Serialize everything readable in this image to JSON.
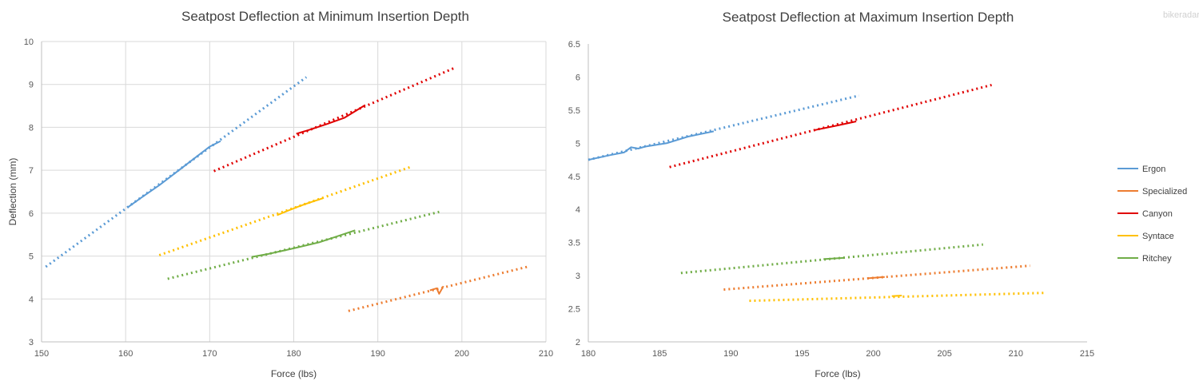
{
  "watermark": "bikeradar",
  "legend": {
    "position": "right",
    "entries": [
      {
        "name": "Ergon",
        "color": "#5b9bd5"
      },
      {
        "name": "Specialized",
        "color": "#ed7d31"
      },
      {
        "name": "Canyon",
        "color": "#e00000"
      },
      {
        "name": "Syntace",
        "color": "#ffc000"
      },
      {
        "name": "Ritchey",
        "color": "#70ad47"
      }
    ]
  },
  "chart_data": [
    {
      "type": "line",
      "title": "Seatpost Deflection at Minimum Insertion Depth",
      "xlabel": "Force (lbs)",
      "ylabel": "Deflection (mm)",
      "xlim": [
        150,
        210
      ],
      "ylim": [
        3,
        10
      ],
      "xticks": [
        "150",
        "160",
        "170",
        "180",
        "190",
        "200",
        "210"
      ],
      "yticks": [
        "3",
        "4",
        "5",
        "6",
        "7",
        "8",
        "9",
        "10"
      ],
      "grid": true,
      "series": [
        {
          "name": "Ergon",
          "color": "#5b9bd5",
          "measured": [
            [
              160.2,
              6.13
            ],
            [
              162,
              6.38
            ],
            [
              164,
              6.65
            ],
            [
              166,
              6.95
            ],
            [
              168,
              7.25
            ],
            [
              170,
              7.55
            ],
            [
              171.3,
              7.68
            ]
          ],
          "trend": [
            [
              150.5,
              4.75
            ],
            [
              181.5,
              9.17
            ]
          ]
        },
        {
          "name": "Specialized",
          "color": "#ed7d31",
          "measured": [
            [
              196.2,
              4.2
            ],
            [
              197,
              4.25
            ],
            [
              197.3,
              4.12
            ],
            [
              197.8,
              4.3
            ]
          ],
          "trend": [
            [
              186.5,
              3.72
            ],
            [
              208,
              4.76
            ]
          ]
        },
        {
          "name": "Canyon",
          "color": "#e00000",
          "measured": [
            [
              180.3,
              7.85
            ],
            [
              182,
              7.95
            ],
            [
              184,
              8.08
            ],
            [
              186,
              8.22
            ],
            [
              188.5,
              8.52
            ]
          ],
          "trend": [
            [
              170.5,
              6.98
            ],
            [
              199.3,
              9.4
            ]
          ]
        },
        {
          "name": "Syntace",
          "color": "#ffc000",
          "measured": [
            [
              178,
              5.95
            ],
            [
              179.2,
              6.05
            ],
            [
              180.5,
              6.15
            ],
            [
              181.5,
              6.22
            ],
            [
              183.5,
              6.35
            ]
          ],
          "trend": [
            [
              164,
              5.02
            ],
            [
              193.8,
              7.07
            ]
          ]
        },
        {
          "name": "Ritchey",
          "color": "#70ad47",
          "measured": [
            [
              175,
              4.98
            ],
            [
              177,
              5.05
            ],
            [
              180,
              5.18
            ],
            [
              183,
              5.32
            ],
            [
              185,
              5.45
            ],
            [
              187.3,
              5.6
            ]
          ],
          "trend": [
            [
              165,
              4.47
            ],
            [
              197.3,
              6.03
            ]
          ]
        }
      ]
    },
    {
      "type": "line",
      "title": "Seatpost Deflection at Maximum Insertion Depth",
      "xlabel": "Force (lbs)",
      "ylabel": "",
      "xlim": [
        180,
        215
      ],
      "ylim": [
        2,
        6.5
      ],
      "xticks": [
        "180",
        "185",
        "190",
        "195",
        "200",
        "205",
        "210",
        "215"
      ],
      "yticks": [
        "2",
        "2.5",
        "3",
        "3.5",
        "4",
        "4.5",
        "5",
        "5.5",
        "6",
        "6.5"
      ],
      "grid": false,
      "series": [
        {
          "name": "Ergon",
          "color": "#5b9bd5",
          "measured": [
            [
              180,
              4.75
            ],
            [
              181.5,
              4.82
            ],
            [
              182.5,
              4.86
            ],
            [
              183,
              4.94
            ],
            [
              183.5,
              4.92
            ],
            [
              184,
              4.95
            ],
            [
              185.5,
              5.0
            ],
            [
              187,
              5.1
            ],
            [
              188.8,
              5.18
            ]
          ],
          "trend": [
            [
              180,
              4.75
            ],
            [
              199,
              5.72
            ]
          ]
        },
        {
          "name": "Specialized",
          "color": "#ed7d31",
          "measured": [
            [
              199.6,
              2.96
            ],
            [
              200.8,
              2.98
            ]
          ],
          "trend": [
            [
              189.5,
              2.79
            ],
            [
              211,
              3.15
            ]
          ]
        },
        {
          "name": "Canyon",
          "color": "#e00000",
          "measured": [
            [
              195.9,
              5.2
            ],
            [
              197.5,
              5.27
            ],
            [
              198.8,
              5.33
            ]
          ],
          "trend": [
            [
              185.7,
              4.64
            ],
            [
              208.3,
              5.88
            ]
          ]
        },
        {
          "name": "Syntace",
          "color": "#ffc000",
          "measured": [
            [
              201.3,
              2.69
            ],
            [
              202,
              2.7
            ]
          ],
          "trend": [
            [
              191.3,
              2.62
            ],
            [
              212,
              2.74
            ]
          ]
        },
        {
          "name": "Ritchey",
          "color": "#70ad47",
          "measured": [
            [
              196.5,
              3.25
            ],
            [
              198,
              3.27
            ]
          ],
          "trend": [
            [
              186.5,
              3.04
            ],
            [
              207.7,
              3.47
            ]
          ]
        }
      ]
    }
  ]
}
